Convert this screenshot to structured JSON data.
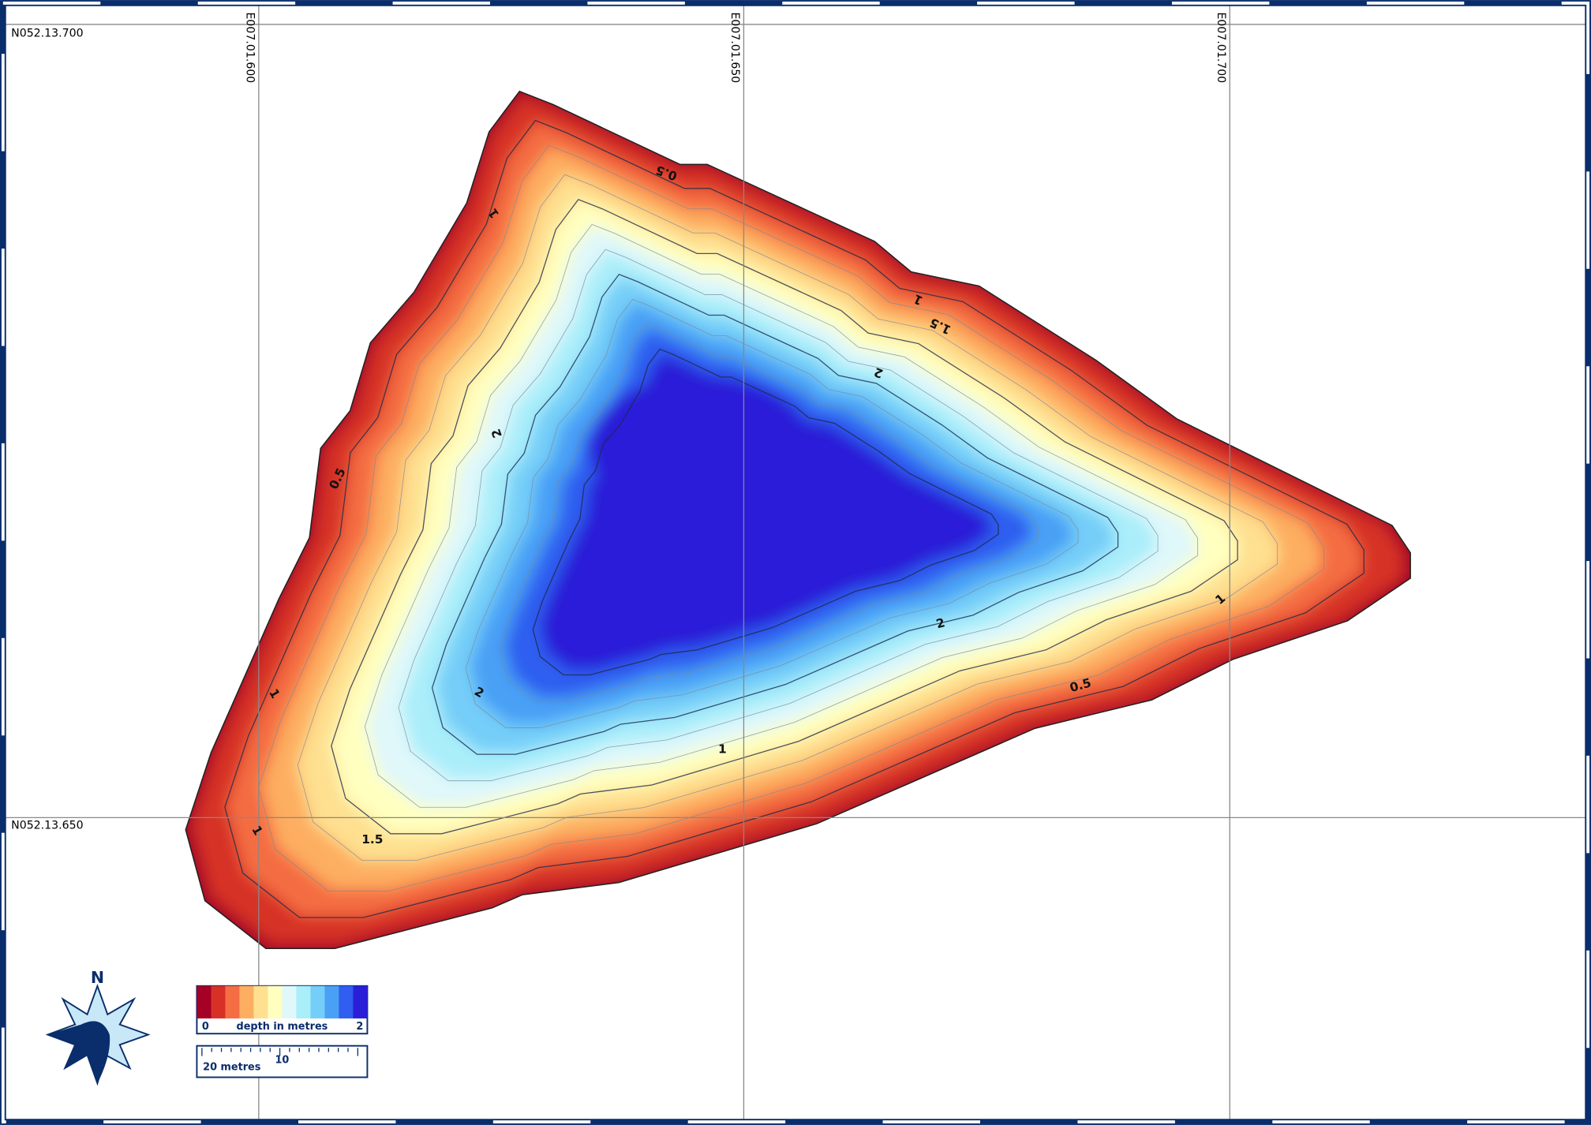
{
  "grid_labels": {
    "lon": [
      "E007.01.600",
      "E007.01.650",
      "E007.01.700"
    ],
    "lat": [
      "N052.13.700",
      "N052.13.650"
    ]
  },
  "contour_labels": [
    "0.5",
    "1",
    "1",
    "1.5",
    "2",
    "2",
    "0.5",
    "1",
    "2",
    "1",
    "2",
    "1",
    "0.5",
    "1",
    "1.5"
  ],
  "legend": {
    "min_label": "0",
    "title": "depth in metres",
    "max_label": "2",
    "colors": [
      "#a50026",
      "#d73027",
      "#f46d43",
      "#fdae61",
      "#fee090",
      "#ffffbf",
      "#e0f8fa",
      "#aaeefa",
      "#74cef8",
      "#4aa0f5",
      "#2f5ef0",
      "#2a1ed8"
    ]
  },
  "scale_bar": {
    "label": "20 metres",
    "mid_label": "10"
  },
  "north": "N"
}
